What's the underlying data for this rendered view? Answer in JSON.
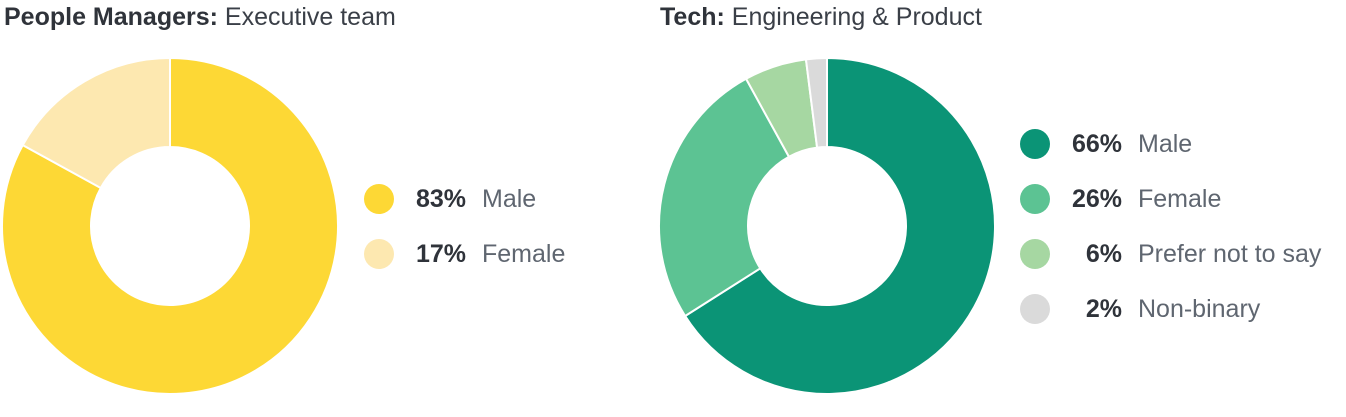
{
  "chart_data": [
    {
      "type": "pie",
      "title": "People Managers:",
      "subtitle": "Executive team",
      "donut": true,
      "legend_position": "right",
      "series": [
        {
          "name": "Male",
          "value": 83,
          "label": "83%",
          "color": "#fdd835"
        },
        {
          "name": "Female",
          "value": 17,
          "label": "17%",
          "color": "#fde8b0"
        }
      ]
    },
    {
      "type": "pie",
      "title": "Tech:",
      "subtitle": "Engineering & Product",
      "donut": true,
      "legend_position": "right",
      "series": [
        {
          "name": "Male",
          "value": 66,
          "label": "66%",
          "color": "#0b9476"
        },
        {
          "name": "Female",
          "value": 26,
          "label": "26%",
          "color": "#5cc393"
        },
        {
          "name": "Prefer not to say",
          "value": 6,
          "label": "6%",
          "color": "#a6d7a2"
        },
        {
          "name": "Non-binary",
          "value": 2,
          "label": "2%",
          "color": "#dadada"
        }
      ]
    }
  ]
}
